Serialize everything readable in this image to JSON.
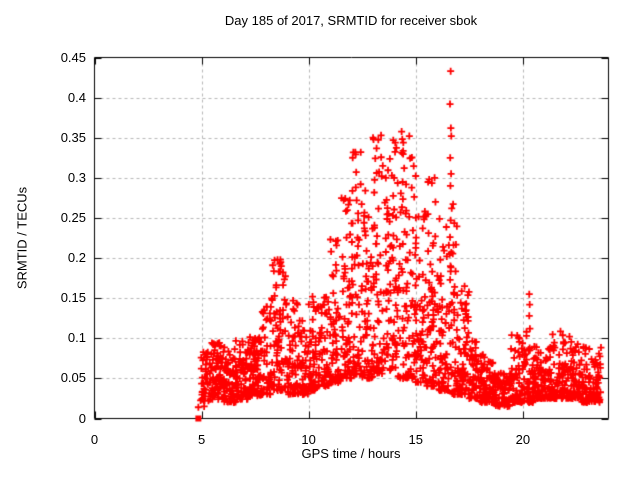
{
  "chart_data": {
    "type": "scatter",
    "title": "Day 185 of 2017, SRMTID for receiver sbok",
    "xlabel": "GPS time / hours",
    "ylabel": "SRMTID / TECUs",
    "xlim": [
      0,
      24
    ],
    "ylim": [
      0,
      0.45
    ],
    "x_ticks": [
      {
        "v": 0,
        "label": "0"
      },
      {
        "v": 5,
        "label": "5"
      },
      {
        "v": 10,
        "label": "10"
      },
      {
        "v": 15,
        "label": "15"
      },
      {
        "v": 20,
        "label": "20"
      }
    ],
    "y_ticks": [
      {
        "v": 0,
        "label": "0"
      },
      {
        "v": 0.05,
        "label": "0.05"
      },
      {
        "v": 0.1,
        "label": "0.1"
      },
      {
        "v": 0.15,
        "label": "0.15"
      },
      {
        "v": 0.2,
        "label": "0.2"
      },
      {
        "v": 0.25,
        "label": "0.25"
      },
      {
        "v": 0.3,
        "label": "0.3"
      },
      {
        "v": 0.35,
        "label": "0.35"
      },
      {
        "v": 0.4,
        "label": "0.4"
      },
      {
        "v": 0.45,
        "label": "0.45"
      }
    ],
    "grid": {
      "style": "dashed",
      "color": "#b8b8b8",
      "dash": [
        3,
        3
      ]
    },
    "frame_color": "#000000",
    "background_color": "#ffffff",
    "text_color": "#000000",
    "legend": "none",
    "series": [
      {
        "name": "SRMTID",
        "marker": "plus",
        "color": "#ff0000",
        "marker_size_px": 7,
        "data_time_range_hours": [
          4.85,
          23.65
        ],
        "first_sample": {
          "t": 4.85,
          "v": 0.0,
          "marker": "filled-square"
        },
        "render_seed": 7,
        "density_bins_format": [
          "t_start",
          "t_end",
          "count",
          "v_min",
          "v_max",
          "skew_toward_min"
        ],
        "density_bins": [
          [
            4.95,
            5.4,
            45,
            0.022,
            0.085,
            1.7
          ],
          [
            5.4,
            6.0,
            70,
            0.024,
            0.095,
            1.8
          ],
          [
            6.0,
            6.6,
            70,
            0.02,
            0.09,
            1.7
          ],
          [
            6.6,
            7.2,
            70,
            0.024,
            0.1,
            1.8
          ],
          [
            7.2,
            7.8,
            70,
            0.028,
            0.105,
            1.7
          ],
          [
            7.8,
            8.3,
            55,
            0.03,
            0.15,
            2.0
          ],
          [
            8.3,
            8.95,
            70,
            0.035,
            0.2,
            1.9
          ],
          [
            8.95,
            9.5,
            60,
            0.03,
            0.165,
            2.1
          ],
          [
            9.5,
            10.0,
            55,
            0.03,
            0.125,
            2.0
          ],
          [
            10.0,
            10.45,
            50,
            0.035,
            0.155,
            2.1
          ],
          [
            10.45,
            11.0,
            60,
            0.04,
            0.155,
            1.9
          ],
          [
            11.0,
            11.5,
            55,
            0.045,
            0.225,
            1.8
          ],
          [
            11.5,
            12.0,
            58,
            0.05,
            0.275,
            1.8
          ],
          [
            12.0,
            12.5,
            58,
            0.055,
            0.335,
            1.8
          ],
          [
            12.5,
            13.0,
            58,
            0.05,
            0.285,
            1.7
          ],
          [
            13.0,
            13.5,
            58,
            0.055,
            0.355,
            1.9
          ],
          [
            13.5,
            14.0,
            58,
            0.06,
            0.325,
            1.6
          ],
          [
            14.0,
            14.5,
            58,
            0.05,
            0.36,
            1.9
          ],
          [
            14.5,
            15.0,
            58,
            0.05,
            0.35,
            1.8
          ],
          [
            15.0,
            15.5,
            58,
            0.045,
            0.275,
            1.8
          ],
          [
            15.5,
            16.0,
            58,
            0.04,
            0.3,
            2.0
          ],
          [
            16.0,
            16.5,
            58,
            0.035,
            0.26,
            2.1
          ],
          [
            16.5,
            17.0,
            58,
            0.03,
            0.27,
            2.2
          ],
          [
            17.0,
            17.5,
            55,
            0.03,
            0.17,
            2.1
          ],
          [
            17.5,
            18.0,
            60,
            0.025,
            0.105,
            1.9
          ],
          [
            18.0,
            18.6,
            70,
            0.02,
            0.08,
            1.7
          ],
          [
            18.6,
            19.4,
            85,
            0.015,
            0.058,
            1.4
          ],
          [
            19.4,
            20.0,
            65,
            0.02,
            0.105,
            2.1
          ],
          [
            20.0,
            20.5,
            55,
            0.02,
            0.12,
            2.2
          ],
          [
            20.5,
            21.3,
            85,
            0.025,
            0.095,
            1.9
          ],
          [
            21.3,
            22.0,
            75,
            0.025,
            0.11,
            1.9
          ],
          [
            22.0,
            22.7,
            75,
            0.025,
            0.105,
            2.0
          ],
          [
            22.7,
            23.65,
            100,
            0.02,
            0.09,
            1.7
          ]
        ],
        "outlier_points": [
          [
            16.63,
            0.433
          ],
          [
            16.6,
            0.392
          ],
          [
            16.64,
            0.362
          ],
          [
            16.66,
            0.352
          ],
          [
            16.61,
            0.325
          ],
          [
            16.65,
            0.305
          ],
          [
            16.62,
            0.29
          ],
          [
            16.68,
            0.262
          ],
          [
            16.63,
            0.247
          ],
          [
            16.6,
            0.226
          ],
          [
            16.66,
            0.207
          ],
          [
            16.62,
            0.19
          ],
          [
            13.38,
            0.353
          ],
          [
            13.41,
            0.302
          ],
          [
            13.95,
            0.347
          ],
          [
            13.99,
            0.3
          ],
          [
            14.42,
            0.344
          ],
          [
            14.46,
            0.312
          ],
          [
            14.7,
            0.352
          ],
          [
            12.18,
            0.332
          ],
          [
            12.22,
            0.307
          ],
          [
            12.2,
            0.288
          ],
          [
            12.24,
            0.272
          ],
          [
            11.92,
            0.272
          ],
          [
            15.88,
            0.3
          ],
          [
            15.92,
            0.27
          ],
          [
            8.68,
            0.198
          ],
          [
            8.72,
            0.19
          ],
          [
            8.6,
            0.183
          ],
          [
            17.28,
            0.165
          ],
          [
            17.31,
            0.142
          ],
          [
            17.33,
            0.134
          ],
          [
            20.3,
            0.155
          ],
          [
            20.32,
            0.142
          ],
          [
            20.3,
            0.128
          ],
          [
            20.33,
            0.112
          ],
          [
            10.18,
            0.152
          ],
          [
            10.22,
            0.145
          ],
          [
            4.85,
            0.014
          ],
          [
            5.12,
            0.015
          ]
        ]
      }
    ]
  }
}
